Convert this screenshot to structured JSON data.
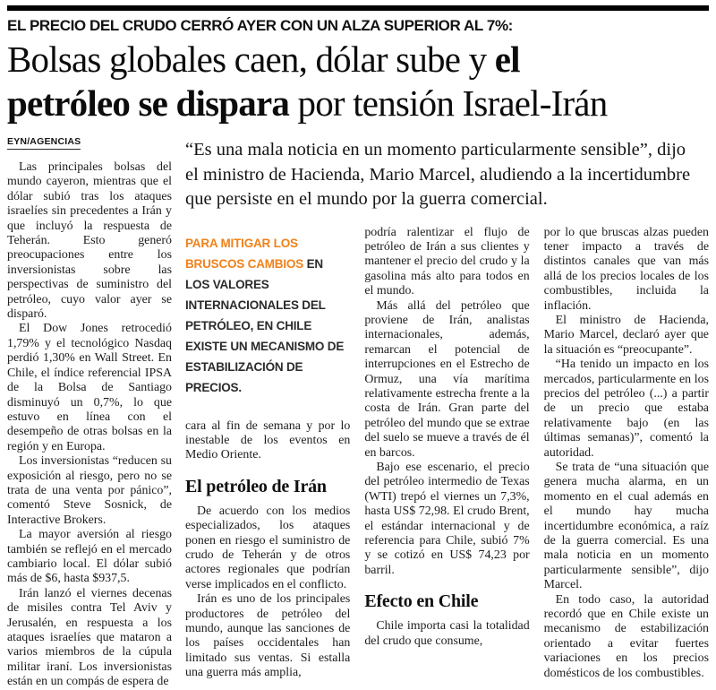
{
  "colors": {
    "accent_orange": "#f08119",
    "text": "#1b1b1b",
    "rule": "#000000"
  },
  "header": {
    "kicker": "EL PRECIO DEL CRUDO CERRÓ AYER CON UN ALZA SUPERIOR AL 7%:",
    "headline": {
      "line1_regular": "Bolsas globales caen, dólar sube y ",
      "line1_bold": "el",
      "line2_bold": "petróleo se dispara",
      "line2_regular": " por tensión Israel-Irán"
    },
    "byline": "EYN/AGENCIAS"
  },
  "lead": "“Es una mala noticia en un momento particularmente sensible”, dijo el ministro de Hacienda, Mario Marcel, aludiendo a la incertidumbre que persiste en el mundo por la guerra comercial.",
  "columns": {
    "col1": {
      "paragraphs": [
        "Las principales bolsas del mundo cayeron, mientras que el dólar subió tras los ataques israelíes sin precedentes a Irán y que incluyó la respuesta de Teherán. Esto generó preocupaciones entre los inversionistas sobre las perspectivas de suministro del petróleo, cuyo valor ayer se disparó.",
        "El Dow Jones retrocedió 1,79% y el tecnológico Nasdaq perdió 1,30% en Wall Street. En Chile, el índice referencial IPSA de la Bolsa de Santiago disminuyó un 0,7%, lo que estuvo en línea con el desempeño de otras bolsas en la región y en Europa.",
        "Los inversionistas “reducen su exposición al riesgo, pero no se trata de una venta por pánico”, comentó Steve Sosnick, de Interactive Brokers.",
        "La mayor aversión al riesgo también se reflejó en el mercado cambiario local. El dólar subió más de $6, hasta $937,5.",
        "Irán lanzó el viernes decenas de misiles contra Tel Aviv y Jerusalén, en respuesta a los ataques israelíes que mataron a varios miembros de la cúpula militar iraní. Los inversionistas están en un compás de espera de"
      ]
    },
    "col2": {
      "pullquote": {
        "highlight": "PARA MITIGAR LOS BRUSCOS CAMBIOS",
        "rest": " EN LOS VALORES INTERNACIONALES DEL PETRÓLEO, EN CHILE EXISTE UN MECANISMO DE ESTABILIZACIÓN DE PRECIOS."
      },
      "continuation": "cara al fin de semana y por lo inestable de los eventos en Medio Oriente.",
      "heading": "El petróleo de Irán",
      "paragraphs": [
        "De acuerdo con los medios especializados, los ataques ponen en riesgo el suministro de crudo de Teherán y de otros actores regionales que podrían verse implicados en el conflicto.",
        "Irán es uno de los principales productores de petróleo del mundo, aunque las sanciones de los países occidentales han limitado sus ventas. Si estalla una guerra más amplia,"
      ]
    },
    "col3": {
      "continuation": "podría ralentizar el flujo de petróleo de Irán a sus clientes y mantener el precio del crudo y la gasolina más alto para todos en el mundo.",
      "paragraphs": [
        "Más allá del petróleo que proviene de Irán, analistas internacionales, además, remarcan el potencial de interrupciones en el Estrecho de Ormuz, una vía marítima relativamente estrecha frente a la costa de Irán. Gran parte del petróleo del mundo que se extrae del suelo se mueve a través de él en barcos.",
        "Bajo ese escenario, el precio del petróleo intermedio de Texas (WTI) trepó el viernes un 7,3%, hasta US$ 72,98. El crudo Brent, el estándar internacional y de referencia para Chile, subió 7% y se cotizó en US$ 74,23 por barril."
      ],
      "heading": "Efecto en Chile",
      "after_heading": "Chile importa casi la totalidad del crudo que consume,"
    },
    "col4": {
      "continuation": "por lo que bruscas alzas pueden tener impacto a través de distintos canales que van más allá de los precios locales de los combustibles, incluida la inflación.",
      "paragraphs": [
        "El ministro de Hacienda, Mario Marcel, declaró ayer que la situación es “preocupante”.",
        "“Ha tenido un impacto en los mercados, particularmente en los precios del petróleo (...) a partir de un precio que estaba relativamente bajo (en las últimas semanas)”, comentó la autoridad.",
        "Se trata de “una situación que genera mucha alarma, en un momento en el cual además en el mundo hay mucha incertidumbre económica, a raíz de la guerra comercial. Es una mala noticia en un momento particularmente sensible”, dijo Marcel.",
        "En todo caso, la autoridad recordó que en Chile existe un mecanismo de estabilización orientado a evitar fuertes variaciones en los precios domésticos de los combustibles."
      ]
    }
  }
}
